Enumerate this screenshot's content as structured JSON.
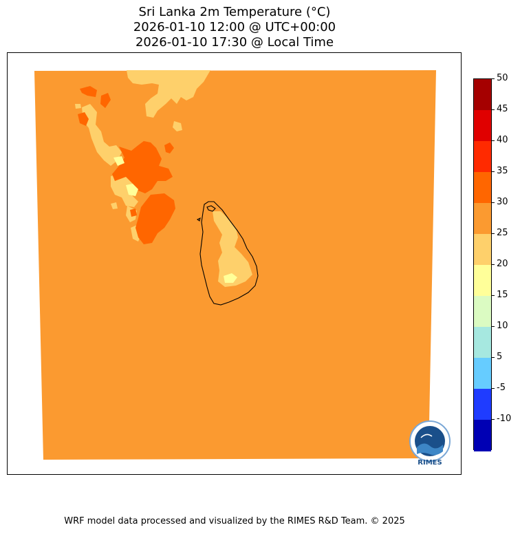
{
  "title": {
    "line1": "Sri Lanka 2m Temperature (°C)",
    "line2": "2026-01-10 12:00 @ UTC+00:00",
    "line3": "2026-01-10 17:30 @ Local Time"
  },
  "colorbar": {
    "ticks": [
      "50",
      "45",
      "40",
      "35",
      "30",
      "25",
      "20",
      "15",
      "10",
      "5",
      "-5",
      "-10"
    ],
    "colors": [
      "#a50000",
      "#e00000",
      "#ff2a00",
      "#ff6600",
      "#fb9a30",
      "#fed06b",
      "#ffff99",
      "#dbfbc2",
      "#a6e8e0",
      "#66ccff",
      "#1f3cff",
      "#0000b4"
    ]
  },
  "map": {
    "base_color": "#fb9a30",
    "warm_color": "#ff6600",
    "cool_color": "#fed06b",
    "coolest_color": "#ffff99",
    "coastline_color": "#000000"
  },
  "logo": {
    "text": "RIMES"
  },
  "footer": "WRF model data processed and visualized by the RIMES R&D Team. © 2025"
}
